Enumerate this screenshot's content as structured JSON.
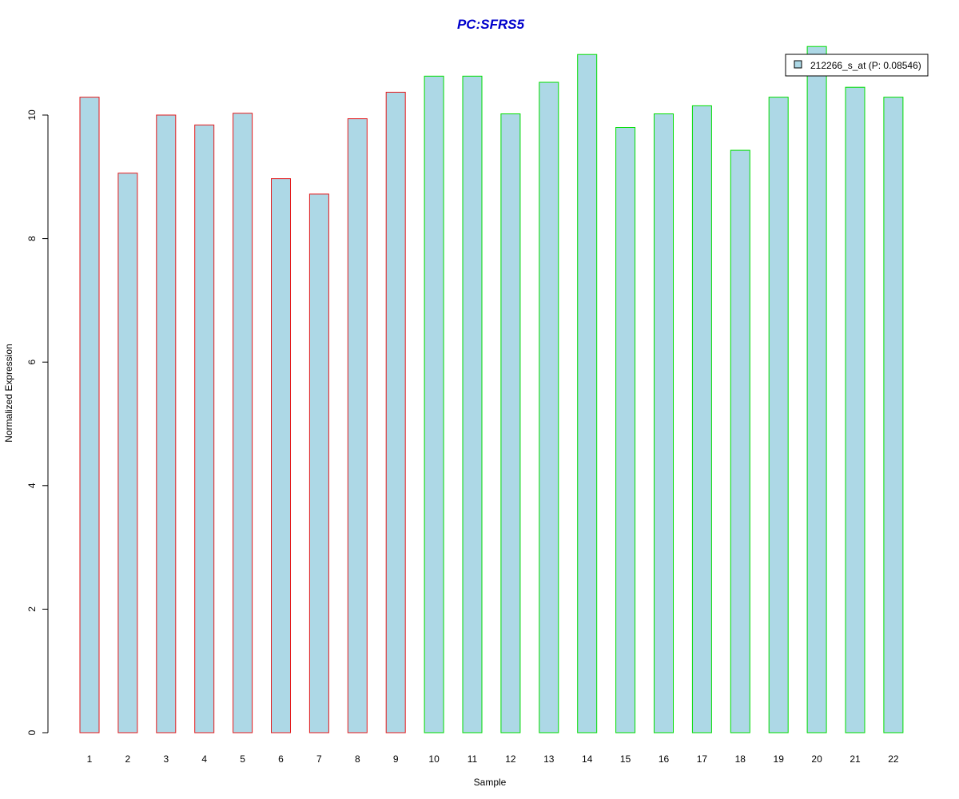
{
  "chart_data": {
    "type": "bar",
    "title": "PC:SFRS5",
    "xlabel": "Sample",
    "ylabel": "Normalized Expression",
    "categories": [
      "1",
      "2",
      "3",
      "4",
      "5",
      "6",
      "7",
      "8",
      "9",
      "10",
      "11",
      "12",
      "13",
      "14",
      "15",
      "16",
      "17",
      "18",
      "19",
      "20",
      "21",
      "22"
    ],
    "series": [
      {
        "name": "212266_s_at (P: 0.08546)",
        "values": [
          10.29,
          9.06,
          10.0,
          9.84,
          10.03,
          8.97,
          8.72,
          9.94,
          10.37,
          10.63,
          10.63,
          10.02,
          10.53,
          10.98,
          9.8,
          10.02,
          10.15,
          9.43,
          10.29,
          11.11,
          10.45,
          10.29
        ]
      }
    ],
    "group_border_colors": [
      "#e31a1c",
      "#e31a1c",
      "#e31a1c",
      "#e31a1c",
      "#e31a1c",
      "#e31a1c",
      "#e31a1c",
      "#e31a1c",
      "#e31a1c",
      "#00dd00",
      "#00dd00",
      "#00dd00",
      "#00dd00",
      "#00dd00",
      "#00dd00",
      "#00dd00",
      "#00dd00",
      "#00dd00",
      "#00dd00",
      "#00dd00",
      "#00dd00",
      "#00dd00"
    ],
    "bar_fill_color": "#add8e6",
    "title_color": "#0000cc",
    "y_ticks": [
      "0",
      "2",
      "4",
      "6",
      "8",
      "10"
    ],
    "ylim": [
      0,
      11.2
    ],
    "grid": false,
    "legend_position": "top-right"
  }
}
